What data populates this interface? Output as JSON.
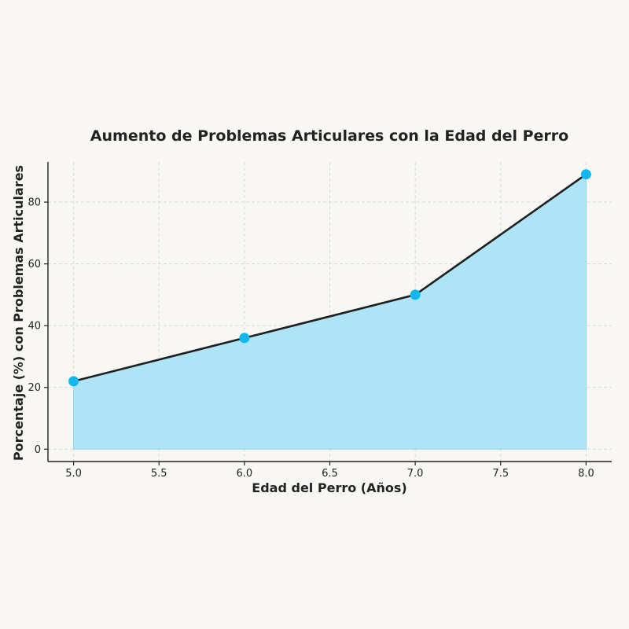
{
  "chart_data": {
    "type": "area",
    "title": "Aumento de Problemas Articulares con la Edad del Perro",
    "xlabel": "Edad del Perro (Años)",
    "ylabel": "Porcentaje (%) con Problemas Articulares",
    "x": [
      5,
      6,
      7,
      8
    ],
    "series": [
      {
        "values": [
          22,
          36,
          50,
          89
        ]
      }
    ],
    "xlim": [
      4.85,
      8.15
    ],
    "ylim": [
      -4,
      93
    ],
    "xticks": [
      "5.0",
      "5.5",
      "6.0",
      "6.5",
      "7.0",
      "7.5",
      "8.0"
    ],
    "yticks": [
      "0",
      "20",
      "40",
      "60",
      "80"
    ],
    "grid": true,
    "colors": {
      "line": "#1f1f1f",
      "fill": "#aee5f6",
      "marker": "#12b8ec",
      "grid": "#d9d9d9"
    }
  }
}
